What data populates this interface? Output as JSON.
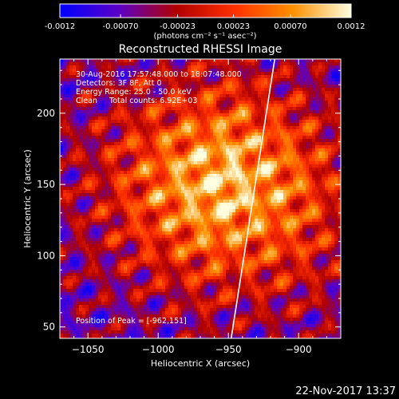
{
  "chart_data": {
    "type": "heatmap",
    "title": "Reconstructed RHESSI Image",
    "xlabel": "Heliocentric X (arcsec)",
    "ylabel": "Heliocentric Y (arcsec)",
    "xlim": [
      -1070,
      -870
    ],
    "ylim": [
      42,
      238
    ],
    "xticks": [
      -1050,
      -1000,
      -950,
      -900
    ],
    "yticks": [
      50,
      100,
      150,
      200
    ],
    "colorbar": {
      "label": "(photons cm⁻² s⁻¹ asec⁻²)",
      "range": [
        -0.0012,
        0.0012
      ],
      "tick_values": [
        -0.0012,
        -0.0007,
        -0.00023,
        0.00023,
        0.0007,
        0.0012
      ],
      "tick_labels": [
        "-0.0012",
        "-0.00070",
        "-0.00023",
        "0.00023",
        "0.00070",
        "0.0012"
      ],
      "colors": [
        "#0000ff",
        "#5a00c8",
        "#b00000",
        "#ff3000",
        "#ff9000",
        "#ffffe0"
      ]
    },
    "annotations": [
      "30-Aug-2016 17:57:48.000 to 18:07:48.000",
      "Detectors: 3F 8F, Att 0",
      "Energy Range: 25.0 - 50.0 keV",
      "Clean     Total counts: 6.92E+03"
    ],
    "peak_label": "Position of Peak = [-962,151]",
    "peak": [
      -962,
      151
    ],
    "limb_line": [
      [
        -948,
        42
      ],
      [
        -917,
        238
      ]
    ]
  },
  "footer": {
    "timestamp": "22-Nov-2017 13:37"
  }
}
